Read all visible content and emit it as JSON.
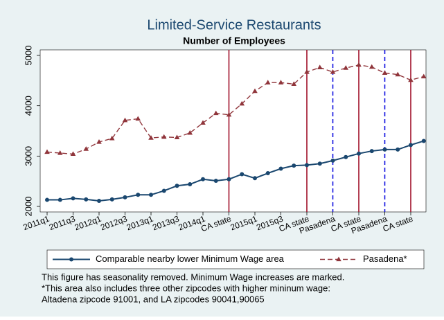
{
  "chart_data": {
    "type": "line",
    "title": "Limited-Service Restaurants",
    "subtitle": "Number of Employees",
    "categories": [
      "2011q1",
      null,
      "2011q3",
      null,
      "2012q1",
      null,
      "2012q3",
      null,
      "2013q1",
      null,
      "2013q3",
      null,
      "2014q1",
      null,
      "CA state",
      null,
      "2015q1",
      null,
      "2015q3",
      null,
      "CA state",
      null,
      "Pasadena",
      null,
      "CA state",
      null,
      "Pasadena",
      null,
      "CA state",
      null
    ],
    "series": [
      {
        "name": "Comparable nearby lower Minimum Wage area",
        "color": "#1a476f",
        "dashed": false,
        "marker": "circle",
        "values": [
          2130,
          2130,
          2160,
          2140,
          2110,
          2140,
          2180,
          2230,
          2230,
          2310,
          2410,
          2440,
          2540,
          2510,
          2540,
          2640,
          2560,
          2660,
          2750,
          2810,
          2820,
          2850,
          2910,
          2980,
          3050,
          3100,
          3130,
          3130,
          3220,
          3300
        ]
      },
      {
        "name": "Pasadena*",
        "color": "#90353b",
        "dashed": true,
        "marker": "triangle",
        "values": [
          3080,
          3060,
          3040,
          3140,
          3280,
          3350,
          3710,
          3740,
          3360,
          3380,
          3370,
          3460,
          3660,
          3850,
          3820,
          4040,
          4290,
          4460,
          4460,
          4430,
          4670,
          4760,
          4670,
          4750,
          4810,
          4770,
          4650,
          4620,
          4510,
          4580
        ]
      }
    ],
    "vlines": [
      {
        "at": 14,
        "color": "#a0102a",
        "dashed": false
      },
      {
        "at": 20,
        "color": "#a0102a",
        "dashed": false
      },
      {
        "at": 22,
        "color": "#1010e0",
        "dashed": true
      },
      {
        "at": 24,
        "color": "#a0102a",
        "dashed": false
      },
      {
        "at": 26,
        "color": "#1010e0",
        "dashed": true
      },
      {
        "at": 28,
        "color": "#a0102a",
        "dashed": false
      }
    ],
    "ylim": [
      1890,
      5110
    ],
    "yticks": [
      2000,
      3000,
      4000,
      5000
    ],
    "grid": false,
    "legend": "bottom",
    "notes": [
      "This figure has seasonality removed. Minimum Wage increases are marked.",
      "*This area also includes three other zipcodes with higher mininum wage:",
      "Altadena zipcode 91001, and LA zipcodes 90041,90065"
    ]
  }
}
